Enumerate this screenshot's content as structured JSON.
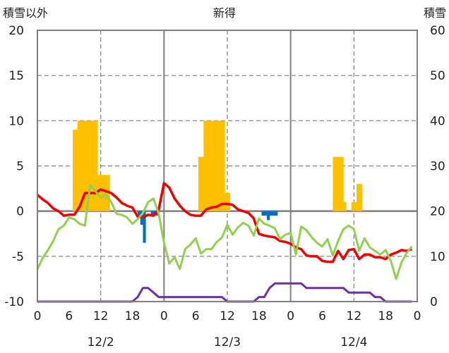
{
  "chart_data": {
    "type": "line",
    "title": "新得",
    "ylabel_left": "積雪以外",
    "ylabel_right": "積雪",
    "y_left_ticks": [
      "20",
      "15",
      "10",
      "5",
      "0",
      "-5",
      "-10"
    ],
    "y_right_ticks": [
      "60",
      "50",
      "40",
      "30",
      "20",
      "10",
      "0"
    ],
    "ylim_left": [
      -10,
      20
    ],
    "ylim_right": [
      0,
      60
    ],
    "x_ticks": [
      "0",
      "6",
      "12",
      "18",
      "0",
      "6",
      "12",
      "18",
      "0",
      "6",
      "12",
      "18",
      "0"
    ],
    "x_range": [
      0,
      72
    ],
    "day_labels": [
      {
        "label": "12/2",
        "x": 12
      },
      {
        "label": "12/3",
        "x": 36
      },
      {
        "label": "12/4",
        "x": 60
      }
    ],
    "colors": {
      "temperature": "#ee0000",
      "other": "#92d050",
      "snow_depth": "#7030a0",
      "snowfall": "#ffc000",
      "negative_bar": "#0070c0",
      "grid": "#7f7f7f"
    },
    "series": [
      {
        "key": "temperature",
        "x": [
          0,
          1,
          2,
          3,
          4,
          5,
          6,
          7,
          8,
          9,
          10,
          11,
          12,
          13,
          14,
          15,
          16,
          17,
          18,
          19,
          20,
          21,
          22,
          23,
          24,
          25,
          26,
          27,
          28,
          29,
          30,
          31,
          32,
          33,
          34,
          35,
          36,
          37,
          38,
          39,
          40,
          41,
          42,
          43,
          44,
          45,
          46,
          47,
          48,
          49,
          50,
          51,
          52,
          53,
          54,
          55,
          56,
          57,
          58,
          59,
          60,
          61,
          62,
          63,
          64,
          65,
          66,
          67,
          68,
          69,
          70,
          71
        ],
        "values": [
          1.8,
          1.3,
          0.9,
          0.3,
          0.0,
          -0.5,
          -0.4,
          -0.4,
          0.5,
          2.0,
          2.0,
          2.0,
          2.4,
          2.2,
          2.0,
          1.5,
          0.9,
          0.6,
          0.4,
          -0.6,
          -0.7,
          -0.4,
          -0.5,
          0.2,
          3.1,
          2.6,
          1.4,
          0.6,
          0.0,
          -0.4,
          -0.5,
          -0.5,
          0.2,
          0.4,
          0.5,
          0.8,
          0.8,
          0.7,
          0.2,
          0.0,
          -0.2,
          -0.8,
          -2.5,
          -2.7,
          -2.8,
          -2.9,
          -3.3,
          -3.4,
          -3.6,
          -4.0,
          -4.2,
          -4.9,
          -5.0,
          -5.0,
          -5.5,
          -5.6,
          -5.6,
          -4.4,
          -5.3,
          -4.3,
          -4.2,
          -5.3,
          -4.8,
          -4.8,
          -5.1,
          -5.1,
          -5.3,
          -4.8,
          -4.6,
          -4.3,
          -4.4,
          -4.2
        ]
      },
      {
        "key": "other",
        "x": [
          0,
          1,
          2,
          3,
          4,
          5,
          6,
          7,
          8,
          9,
          10,
          11,
          12,
          13,
          14,
          15,
          16,
          17,
          18,
          19,
          20,
          21,
          22,
          23,
          24,
          25,
          26,
          27,
          28,
          29,
          30,
          31,
          32,
          33,
          34,
          35,
          36,
          37,
          38,
          39,
          40,
          41,
          42,
          43,
          44,
          45,
          46,
          47,
          48,
          49,
          50,
          51,
          52,
          53,
          54,
          55,
          56,
          57,
          58,
          59,
          60,
          61,
          62,
          63,
          64,
          65,
          66,
          67,
          68,
          69,
          70,
          71
        ],
        "values": [
          -6.4,
          -5.2,
          -4.3,
          -3.3,
          -2.0,
          -1.6,
          -0.7,
          -0.9,
          -1.4,
          -1.6,
          2.9,
          2.2,
          1.5,
          1.8,
          1.0,
          -0.3,
          -0.4,
          -0.7,
          -1.4,
          -0.9,
          -0.2,
          1.0,
          1.4,
          -0.3,
          -3.5,
          -5.8,
          -5.1,
          -6.4,
          -4.2,
          -3.7,
          -3.0,
          -4.7,
          -4.2,
          -4.2,
          -3.4,
          -2.9,
          -1.5,
          -2.6,
          -1.8,
          -1.3,
          -1.6,
          -2.7,
          -0.8,
          -1.4,
          -1.6,
          -1.9,
          -3.1,
          -2.6,
          -2.4,
          -4.8,
          -1.7,
          -2.1,
          -2.9,
          -3.5,
          -3.9,
          -3.1,
          -4.9,
          -3.3,
          -2.0,
          -1.6,
          -2.0,
          -4.4,
          -3.0,
          -4.0,
          -4.4,
          -4.8,
          -4.3,
          -5.5,
          -7.5,
          -5.7,
          -4.6,
          -3.9
        ]
      },
      {
        "key": "snow_depth",
        "axis": "right",
        "x": [
          0,
          1,
          2,
          3,
          4,
          5,
          6,
          7,
          8,
          9,
          10,
          11,
          12,
          13,
          14,
          15,
          16,
          17,
          18,
          19,
          20,
          21,
          22,
          23,
          24,
          25,
          26,
          27,
          28,
          29,
          30,
          31,
          32,
          33,
          34,
          35,
          36,
          37,
          38,
          39,
          40,
          41,
          42,
          43,
          44,
          45,
          46,
          47,
          48,
          49,
          50,
          51,
          52,
          53,
          54,
          55,
          56,
          57,
          58,
          59,
          60,
          61,
          62,
          63,
          64,
          65,
          66,
          67,
          68,
          69,
          70,
          71
        ],
        "values": [
          0,
          0,
          0,
          0,
          0,
          0,
          0,
          0,
          0,
          0,
          0,
          0,
          0,
          0,
          0,
          0,
          0,
          0,
          0,
          1,
          3,
          3,
          2,
          1,
          1,
          1,
          1,
          1,
          1,
          1,
          1,
          1,
          1,
          1,
          1,
          1,
          0,
          0,
          0,
          0,
          0,
          0,
          1,
          1,
          3,
          4,
          4,
          4,
          4,
          4,
          4,
          3,
          3,
          3,
          3,
          3,
          3,
          3,
          3,
          2,
          2,
          2,
          2,
          2,
          1,
          1,
          0,
          0,
          0,
          0,
          0,
          0
        ]
      }
    ],
    "bars": [
      {
        "x": [
          6.7,
          7.1,
          7.6,
          8.1,
          8.5,
          9.0,
          9.5,
          9.9,
          10.4,
          10.9,
          11.3,
          11.8,
          12.3,
          12.7,
          13.2
        ],
        "values": [
          9,
          9,
          10,
          10,
          10,
          10,
          10,
          10,
          10,
          10,
          4,
          4,
          4,
          4,
          4
        ],
        "color_key": "snowfall"
      },
      {
        "x": [
          19.0,
          19.5,
          20.0,
          21.5,
          22.0,
          22.5
        ],
        "values": [
          -0.5,
          -1.5,
          -3.5,
          -0.5,
          -0.5,
          -0.5
        ],
        "color_key": "negative_bar"
      },
      {
        "x": [
          30.5,
          31.0,
          31.5,
          32.0,
          32.5,
          33.0,
          33.5,
          34.0,
          34.5,
          35.0,
          35.5,
          36.0
        ],
        "values": [
          6,
          6,
          10,
          10,
          10,
          10,
          10,
          10,
          10,
          10,
          2,
          2
        ],
        "color_key": "snowfall"
      },
      {
        "x": [
          42.5,
          43.0,
          43.5,
          44.0,
          44.5,
          45.0
        ],
        "values": [
          -0.5,
          -0.5,
          -1.0,
          -0.5,
          -0.5,
          -0.5
        ],
        "color_key": "negative_bar"
      },
      {
        "x": [
          56.0,
          56.5,
          57.0,
          57.5,
          58.0,
          59.5,
          60.0,
          60.5,
          61.0
        ],
        "values": [
          6,
          6,
          6,
          6,
          1,
          1,
          1,
          3,
          3
        ],
        "color_key": "snowfall"
      }
    ]
  }
}
